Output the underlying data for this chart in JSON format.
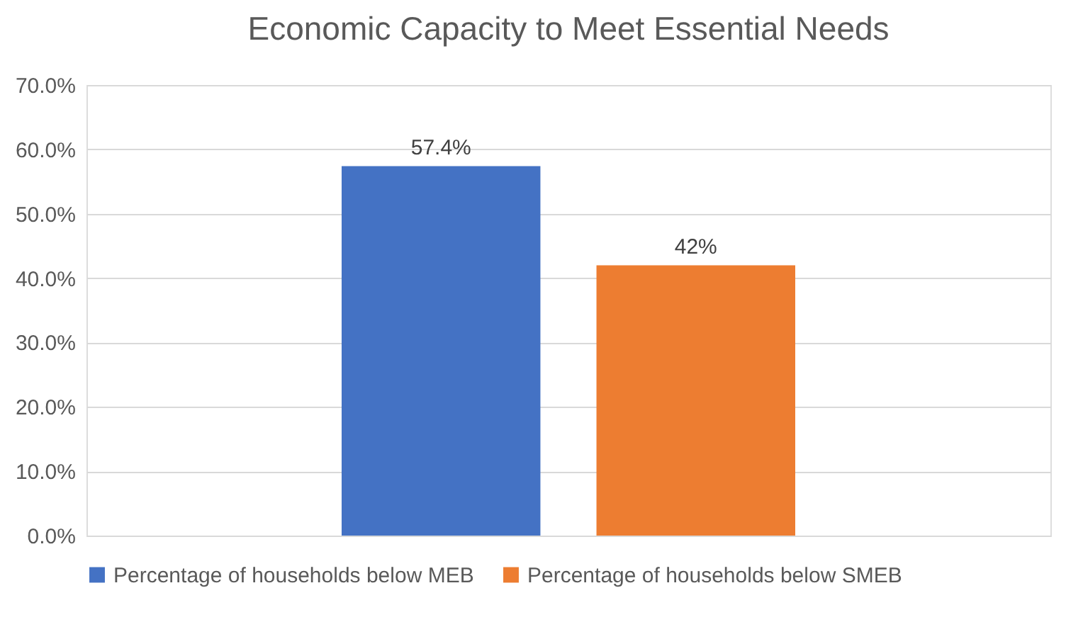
{
  "chart_data": {
    "type": "bar",
    "title": "Economic Capacity to Meet Essential Needs",
    "categories": [
      null
    ],
    "series": [
      {
        "name": "Percentage of households below MEB",
        "color": "#4472c4",
        "values": [
          57.4
        ],
        "value_labels": [
          "57.4%"
        ]
      },
      {
        "name": "Percentage of households below SMEB",
        "color": "#ed7d31",
        "values": [
          42
        ],
        "value_labels": [
          "42%"
        ]
      }
    ],
    "ylim": [
      0,
      70
    ],
    "yticks": [
      {
        "value": 0,
        "label": "0.0%"
      },
      {
        "value": 10,
        "label": "10.0%"
      },
      {
        "value": 20,
        "label": "20.0%"
      },
      {
        "value": 30,
        "label": "30.0%"
      },
      {
        "value": 40,
        "label": "40.0%"
      },
      {
        "value": 50,
        "label": "50.0%"
      },
      {
        "value": 60,
        "label": "60.0%"
      },
      {
        "value": 70,
        "label": "70.0%"
      }
    ],
    "grid": "y",
    "legend": "bottom"
  }
}
